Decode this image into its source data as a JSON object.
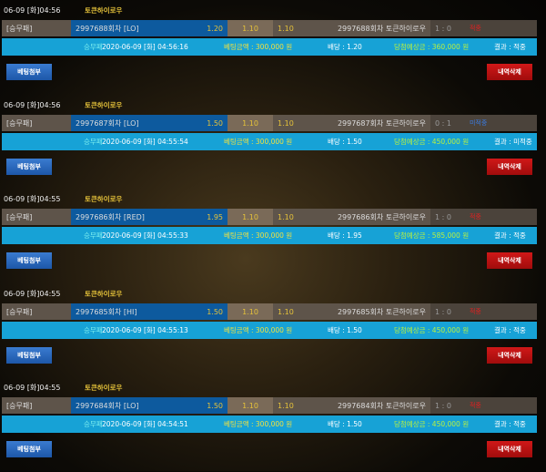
{
  "labels": {
    "type": "[승무패]",
    "type_plain": "승무패",
    "attach": "베팅첨부",
    "delete": "내역삭제",
    "draw_odds": "1.10"
  },
  "colors": {
    "win": "#e02020",
    "lose": "#3a7be0",
    "accent": "#e5c23a"
  },
  "bets": [
    {
      "header": "06-09 [화]04:56",
      "league": "토큰하이로우",
      "game": "2997688회차 [LO]",
      "odd": "1.20",
      "away_odd": "1.10",
      "round": "2997688회차 토큰하이로우",
      "score": "1 : 0",
      "status": "적중",
      "status_color": "#e02020",
      "datetime": "2020-06-09 [화] 04:56:16",
      "amount": "베팅금액 : 300,000 원",
      "rate": "배당 : 1.20",
      "expected": "당첨예상금 : 360,000 원",
      "result": "결과 : 적중"
    },
    {
      "header": "06-09 [화]04:56",
      "league": "토큰하이로우",
      "game": "2997687회차 [LO]",
      "odd": "1.50",
      "away_odd": "1.10",
      "round": "2997687회차 토큰하이로우",
      "score": "0 : 1",
      "status": "미적중",
      "status_color": "#3a7be0",
      "datetime": "2020-06-09 [화] 04:55:54",
      "amount": "베팅금액 : 300,000 원",
      "rate": "배당 : 1.50",
      "expected": "당첨예상금 : 450,000 원",
      "result": "결과 : 미적중"
    },
    {
      "header": "06-09 [화]04:55",
      "league": "토큰하이로우",
      "game": "2997686회차 [RED]",
      "odd": "1.95",
      "away_odd": "1.10",
      "round": "2997686회차 토큰하이로우",
      "score": "1 : 0",
      "status": "적중",
      "status_color": "#e02020",
      "datetime": "2020-06-09 [화] 04:55:33",
      "amount": "베팅금액 : 300,000 원",
      "rate": "배당 : 1.95",
      "expected": "당첨예상금 : 585,000 원",
      "result": "결과 : 적중"
    },
    {
      "header": "06-09 [화]04:55",
      "league": "토큰하이로우",
      "game": "2997685회차 [HI]",
      "odd": "1.50",
      "away_odd": "1.10",
      "round": "2997685회차 토큰하이로우",
      "score": "1 : 0",
      "status": "적중",
      "status_color": "#e02020",
      "datetime": "2020-06-09 [화] 04:55:13",
      "amount": "베팅금액 : 300,000 원",
      "rate": "배당 : 1.50",
      "expected": "당첨예상금 : 450,000 원",
      "result": "결과 : 적중"
    },
    {
      "header": "06-09 [화]04:55",
      "league": "토큰하이로우",
      "game": "2997684회차 [LO]",
      "odd": "1.50",
      "away_odd": "1.10",
      "round": "2997684회차 토큰하이로우",
      "score": "1 : 0",
      "status": "적중",
      "status_color": "#e02020",
      "datetime": "2020-06-09 [화] 04:54:51",
      "amount": "베팅금액 : 300,000 원",
      "rate": "배당 : 1.50",
      "expected": "당첨예상금 : 450,000 원",
      "result": "결과 : 적중"
    }
  ]
}
